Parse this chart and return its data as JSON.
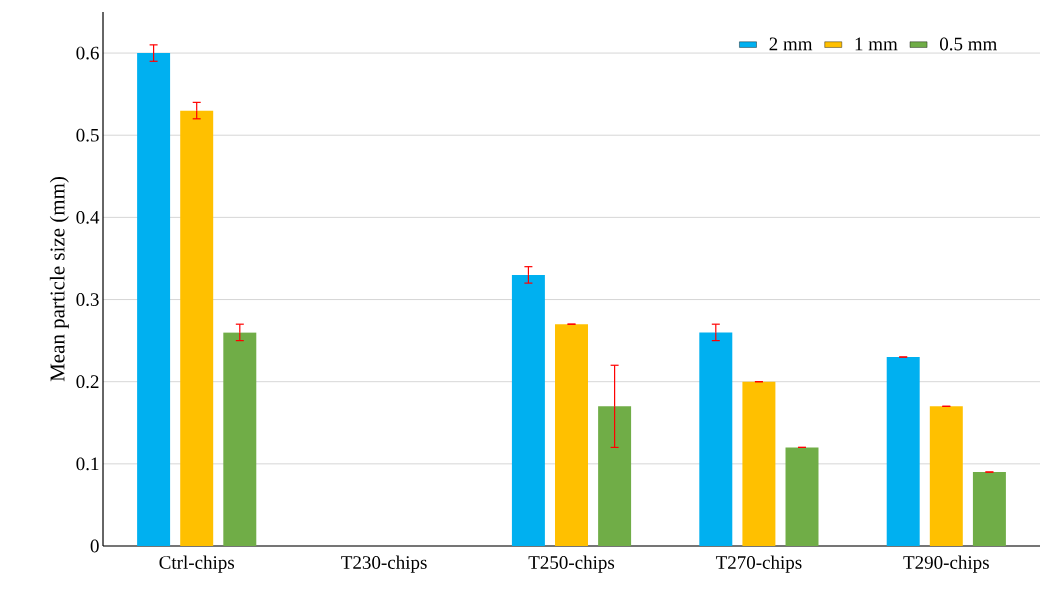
{
  "chart_data": {
    "type": "bar",
    "ylabel": "Mean particle size (mm)",
    "categories": [
      "Ctrl-chips",
      "T230-chips",
      "T250-chips",
      "T270-chips",
      "T290-chips"
    ],
    "series": [
      {
        "name": "2 mm",
        "color": "#00b0f0",
        "values": [
          0.6,
          null,
          0.33,
          0.26,
          0.23
        ],
        "errors": [
          0.01,
          null,
          0.01,
          0.01,
          0
        ]
      },
      {
        "name": "1 mm",
        "color": "#ffc000",
        "values": [
          0.53,
          null,
          0.27,
          0.2,
          0.17
        ],
        "errors": [
          0.01,
          null,
          0,
          0,
          0
        ]
      },
      {
        "name": "0.5 mm",
        "color": "#70ad47",
        "values": [
          0.26,
          null,
          0.17,
          0.12,
          0.09
        ],
        "errors": [
          0.01,
          null,
          0.05,
          0,
          0
        ]
      }
    ],
    "ylim": [
      0,
      0.65
    ],
    "yticks": [
      0,
      0.1,
      0.2,
      0.3,
      0.4,
      0.5,
      0.6
    ],
    "grid": "y",
    "legend": "top right"
  }
}
